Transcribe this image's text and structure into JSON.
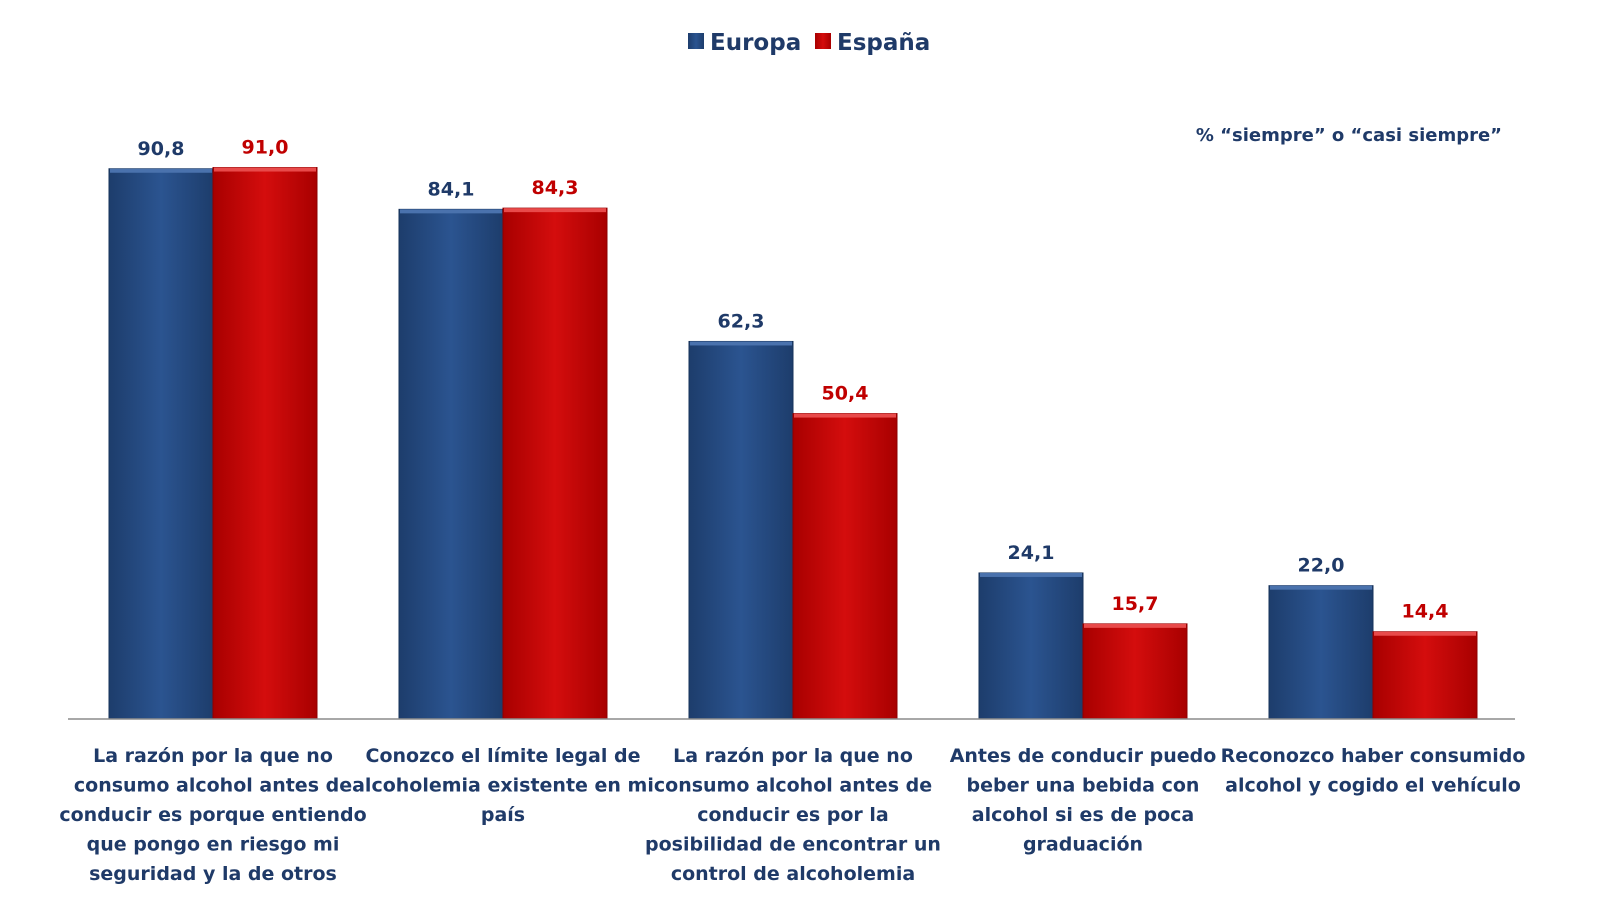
{
  "chart_data": {
    "type": "bar",
    "title": "",
    "note": "% “siempre” o “casi siempre”",
    "categories": [
      [
        "La razón por la que no",
        "consumo alcohol antes de",
        "conducir es porque entiendo",
        "que pongo en riesgo mi",
        "seguridad y la de otros"
      ],
      [
        "Conozco el límite legal de",
        "alcoholemia existente en mi",
        "país"
      ],
      [
        "La razón por la que no",
        "consumo alcohol antes de",
        "conducir es por la",
        "posibilidad de encontrar un",
        "control de alcoholemia"
      ],
      [
        "Antes de conducir puedo",
        "beber una bebida con",
        "alcohol si es de poca",
        "graduación"
      ],
      [
        "Reconozco haber consumido",
        "alcohol y cogido el vehículo"
      ]
    ],
    "series": [
      {
        "name": "Europa",
        "color": "#2a5189",
        "label_color": "#1f3a68",
        "values": [
          90.8,
          84.1,
          62.3,
          24.1,
          22.0
        ],
        "labels": [
          "90,8",
          "84,1",
          "62,3",
          "24,1",
          "22,0"
        ]
      },
      {
        "name": "España",
        "color": "#cc0a0a",
        "label_color": "#c00000",
        "values": [
          91.0,
          84.3,
          50.4,
          15.7,
          14.4
        ],
        "labels": [
          "91,0",
          "84,3",
          "50,4",
          "15,7",
          "14,4"
        ]
      }
    ],
    "xlabel": "",
    "ylabel": "",
    "ylim": [
      0,
      100
    ],
    "grid": false,
    "legend_position": "top-center"
  }
}
